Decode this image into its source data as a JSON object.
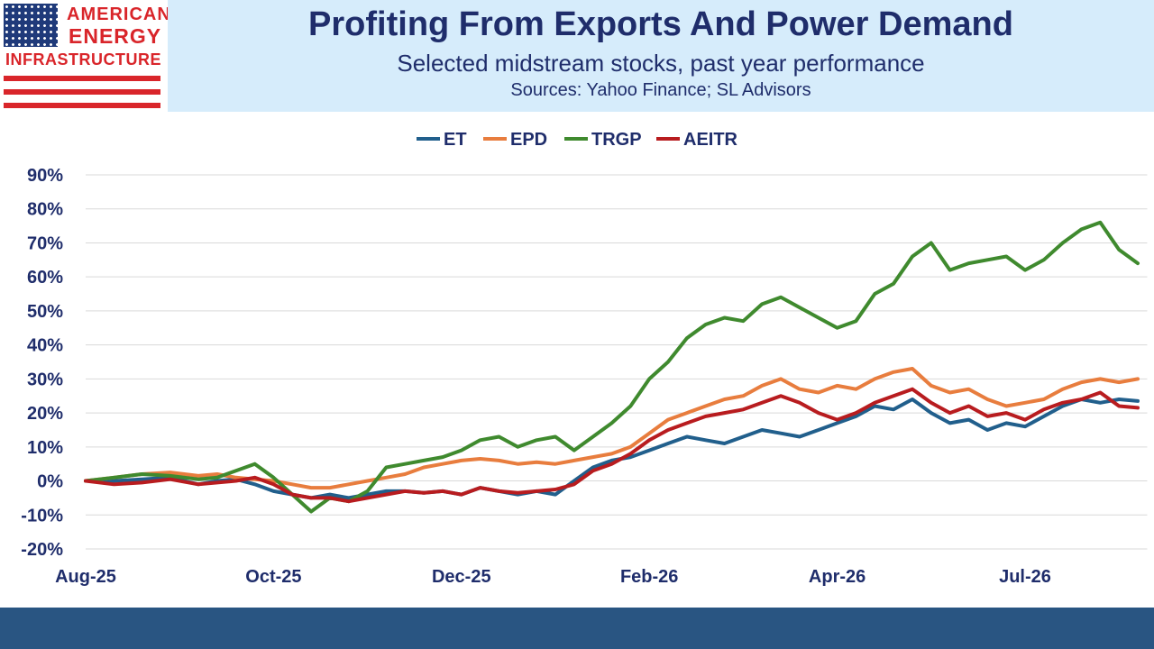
{
  "logo": {
    "line1": "AMERICAN",
    "line2": "ENERGY",
    "line3": "INFRASTRUCTURE"
  },
  "header": {
    "title": "Profiting From Exports And Power Demand",
    "subtitle": "Selected midstream stocks, past year performance",
    "sources": "Sources: Yahoo Finance; SL Advisors"
  },
  "colors": {
    "title_text": "#1f2d6b",
    "header_band": "#d6ecfb",
    "footer_bar": "#295582",
    "logo_red": "#d9252a",
    "logo_blue": "#1f3a7a"
  },
  "chart_data": {
    "type": "line",
    "title": "",
    "xlabel": "",
    "ylabel": "",
    "ylim": [
      -20,
      90
    ],
    "y_ticks": [
      -20,
      -10,
      0,
      10,
      20,
      30,
      40,
      50,
      60,
      70,
      80,
      90
    ],
    "y_tick_labels": [
      "-20%",
      "-10%",
      "0%",
      "10%",
      "20%",
      "30%",
      "40%",
      "50%",
      "60%",
      "70%",
      "80%",
      "90%"
    ],
    "x_ticks": [
      "Aug-25",
      "Oct-25",
      "Dec-25",
      "Feb-26",
      "Apr-26",
      "Jul-26"
    ],
    "x_tick_positions": [
      0,
      2,
      4,
      6,
      8,
      10
    ],
    "x_range": [
      0,
      11.3
    ],
    "grid": "horizontal",
    "legend": "top-center",
    "series": [
      {
        "name": "ET",
        "color": "#215f8c",
        "x": [
          0,
          0.3,
          0.6,
          0.9,
          1.2,
          1.4,
          1.6,
          1.8,
          2.0,
          2.2,
          2.4,
          2.6,
          2.8,
          3.0,
          3.2,
          3.4,
          3.6,
          3.8,
          4.0,
          4.2,
          4.4,
          4.6,
          4.8,
          5.0,
          5.2,
          5.4,
          5.6,
          5.8,
          6.0,
          6.2,
          6.4,
          6.6,
          6.8,
          7.0,
          7.2,
          7.4,
          7.6,
          7.8,
          8.0,
          8.2,
          8.4,
          8.6,
          8.8,
          9.0,
          9.2,
          9.4,
          9.6,
          9.8,
          10.0,
          10.2,
          10.4,
          10.6,
          10.8,
          11.0,
          11.2
        ],
        "values": [
          0,
          0,
          0.5,
          1,
          -1,
          0,
          0.5,
          -1,
          -3,
          -4,
          -5,
          -4,
          -5,
          -4,
          -3,
          -3,
          -3.5,
          -3,
          -4,
          -2,
          -3,
          -4,
          -3,
          -4,
          0,
          4,
          6,
          7,
          9,
          11,
          13,
          12,
          11,
          13,
          15,
          14,
          13,
          15,
          17,
          19,
          22,
          21,
          24,
          20,
          17,
          18,
          15,
          17,
          16,
          19,
          22,
          24,
          23,
          24,
          23.5
        ]
      },
      {
        "name": "EPD",
        "color": "#e87d3e",
        "x": [
          0,
          0.3,
          0.6,
          0.9,
          1.2,
          1.4,
          1.6,
          1.8,
          2.0,
          2.2,
          2.4,
          2.6,
          2.8,
          3.0,
          3.2,
          3.4,
          3.6,
          3.8,
          4.0,
          4.2,
          4.4,
          4.6,
          4.8,
          5.0,
          5.2,
          5.4,
          5.6,
          5.8,
          6.0,
          6.2,
          6.4,
          6.6,
          6.8,
          7.0,
          7.2,
          7.4,
          7.6,
          7.8,
          8.0,
          8.2,
          8.4,
          8.6,
          8.8,
          9.0,
          9.2,
          9.4,
          9.6,
          9.8,
          10.0,
          10.2,
          10.4,
          10.6,
          10.8,
          11.0,
          11.2
        ],
        "values": [
          0,
          1,
          2,
          2.5,
          1.5,
          2,
          1,
          0.5,
          0,
          -1,
          -2,
          -2,
          -1,
          0,
          1,
          2,
          4,
          5,
          6,
          6.5,
          6,
          5,
          5.5,
          5,
          6,
          7,
          8,
          10,
          14,
          18,
          20,
          22,
          24,
          25,
          28,
          30,
          27,
          26,
          28,
          27,
          30,
          32,
          33,
          28,
          26,
          27,
          24,
          22,
          23,
          24,
          27,
          29,
          30,
          29,
          30
        ]
      },
      {
        "name": "TRGP",
        "color": "#3f8a2e",
        "x": [
          0,
          0.3,
          0.6,
          0.9,
          1.2,
          1.4,
          1.6,
          1.8,
          2.0,
          2.2,
          2.4,
          2.6,
          2.8,
          3.0,
          3.2,
          3.4,
          3.6,
          3.8,
          4.0,
          4.2,
          4.4,
          4.6,
          4.8,
          5.0,
          5.2,
          5.4,
          5.6,
          5.8,
          6.0,
          6.2,
          6.4,
          6.6,
          6.8,
          7.0,
          7.2,
          7.4,
          7.6,
          7.8,
          8.0,
          8.2,
          8.4,
          8.6,
          8.8,
          9.0,
          9.2,
          9.4,
          9.6,
          9.8,
          10.0,
          10.2,
          10.4,
          10.6,
          10.8,
          11.0,
          11.2
        ],
        "values": [
          0,
          1,
          2,
          1.5,
          0.5,
          1,
          3,
          5,
          1,
          -4,
          -9,
          -5,
          -6,
          -3,
          4,
          5,
          6,
          7,
          9,
          12,
          13,
          10,
          12,
          13,
          9,
          13,
          17,
          22,
          30,
          35,
          42,
          46,
          48,
          47,
          52,
          54,
          51,
          48,
          45,
          47,
          55,
          58,
          66,
          70,
          62,
          64,
          65,
          66,
          62,
          65,
          70,
          74,
          76,
          68,
          64
        ]
      },
      {
        "name": "AEITR",
        "color": "#b81c1f",
        "x": [
          0,
          0.3,
          0.6,
          0.9,
          1.2,
          1.4,
          1.6,
          1.8,
          2.0,
          2.2,
          2.4,
          2.6,
          2.8,
          3.0,
          3.2,
          3.4,
          3.6,
          3.8,
          4.0,
          4.2,
          4.4,
          4.6,
          4.8,
          5.0,
          5.2,
          5.4,
          5.6,
          5.8,
          6.0,
          6.2,
          6.4,
          6.6,
          6.8,
          7.0,
          7.2,
          7.4,
          7.6,
          7.8,
          8.0,
          8.2,
          8.4,
          8.6,
          8.8,
          9.0,
          9.2,
          9.4,
          9.6,
          9.8,
          10.0,
          10.2,
          10.4,
          10.6,
          10.8,
          11.0,
          11.2
        ],
        "values": [
          0,
          -1,
          -0.5,
          0.5,
          -1,
          -0.5,
          0,
          1,
          -1,
          -4,
          -5,
          -5,
          -6,
          -5,
          -4,
          -3,
          -3.5,
          -3,
          -4,
          -2,
          -3,
          -3.5,
          -3,
          -2.5,
          -1,
          3,
          5,
          8,
          12,
          15,
          17,
          19,
          20,
          21,
          23,
          25,
          23,
          20,
          18,
          20,
          23,
          25,
          27,
          23,
          20,
          22,
          19,
          20,
          18,
          21,
          23,
          24,
          26,
          22,
          21.5
        ]
      }
    ]
  }
}
